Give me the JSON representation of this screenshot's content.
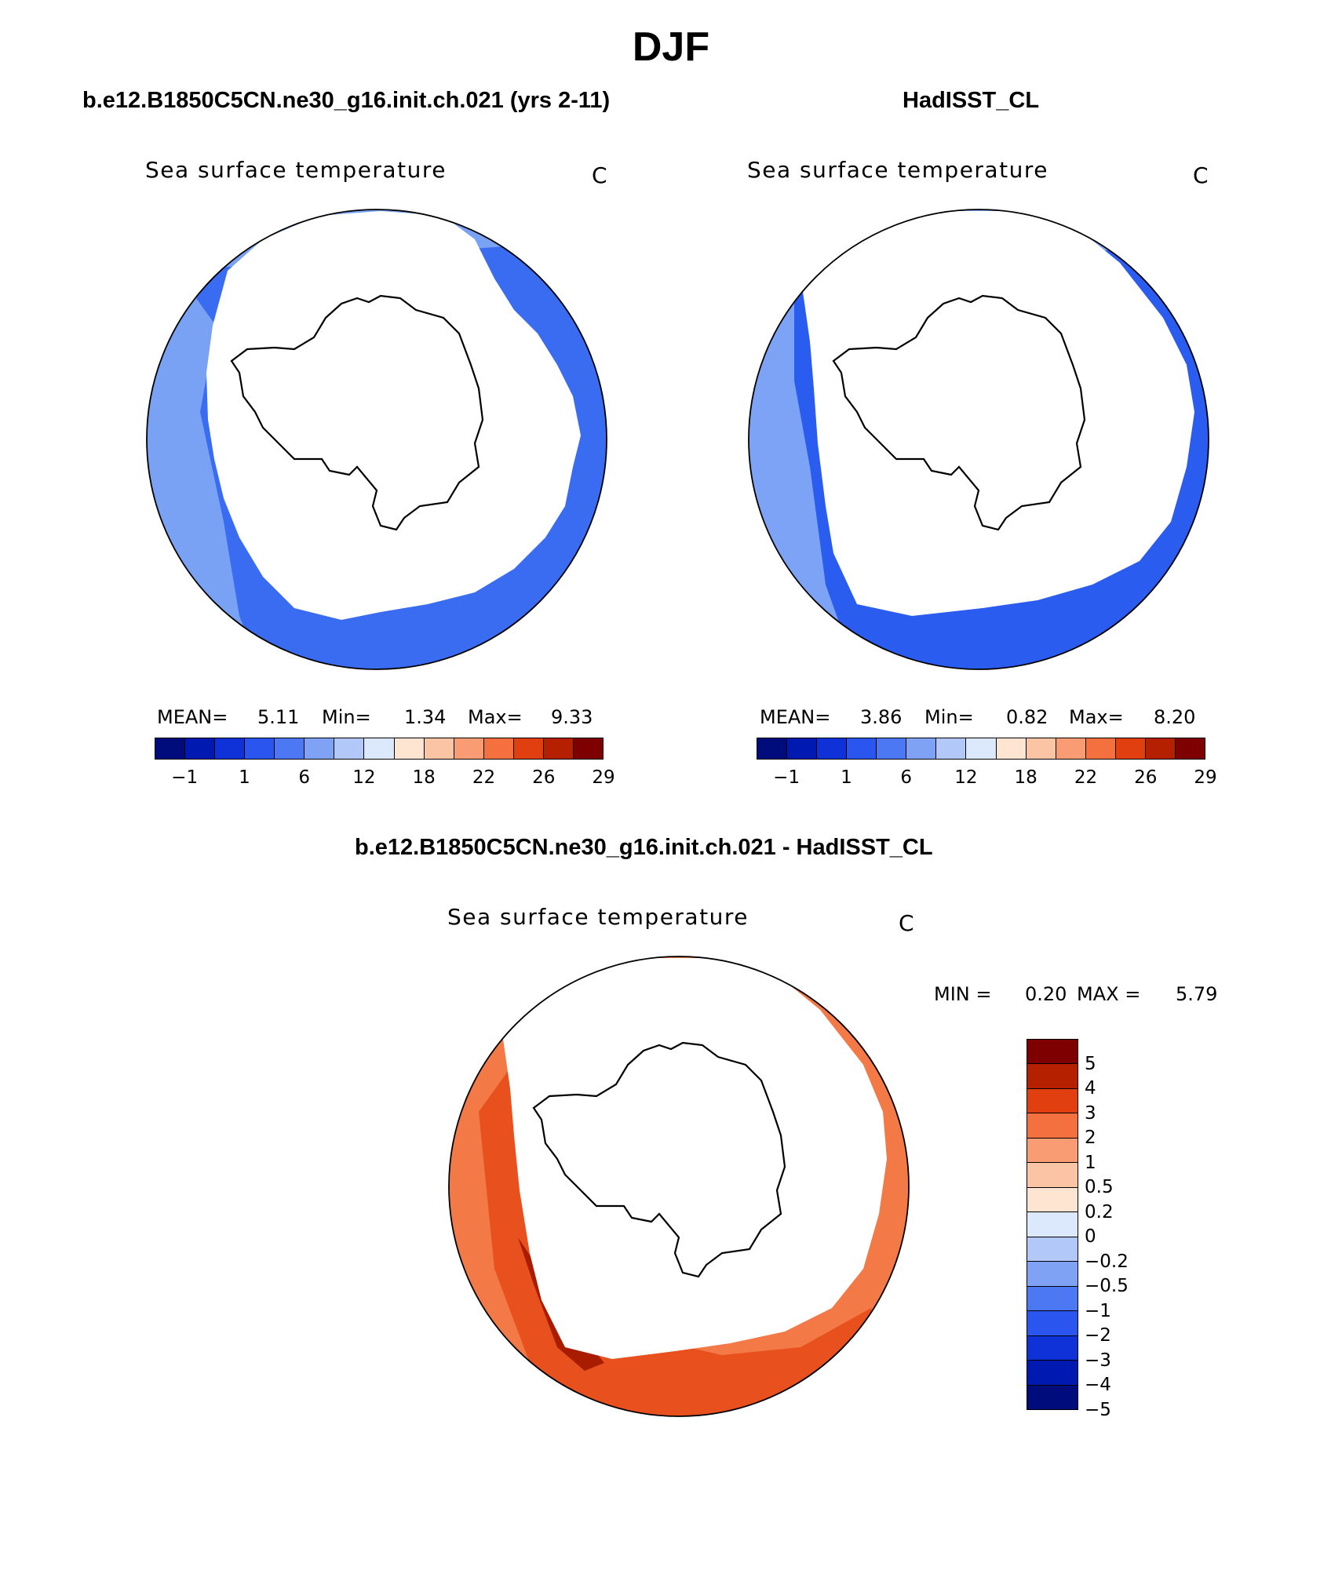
{
  "title": "DJF",
  "panels": {
    "model": {
      "header": "b.e12.B1850C5CN.ne30_g16.init.ch.021 (yrs 2-11)",
      "variable": "Sea surface temperature",
      "units": "C",
      "mean_label": "MEAN=",
      "mean": "5.11",
      "min_label": "Min=",
      "min": "1.34",
      "max_label": "Max=",
      "max": "9.33",
      "ticks": [
        "−1",
        "1",
        "6",
        "12",
        "18",
        "22",
        "26",
        "29"
      ]
    },
    "obs": {
      "header": "HadISST_CL",
      "variable": "Sea surface temperature",
      "units": "C",
      "mean_label": "MEAN=",
      "mean": "3.86",
      "min_label": "Min=",
      "min": "0.82",
      "max_label": "Max=",
      "max": "8.20",
      "ticks": [
        "−1",
        "1",
        "6",
        "12",
        "18",
        "22",
        "26",
        "29"
      ]
    },
    "diff": {
      "header": "b.e12.B1850C5CN.ne30_g16.init.ch.021 - HadISST_CL",
      "variable": "Sea surface temperature",
      "units": "C",
      "min_label": "MIN =",
      "min": "0.20",
      "max_label": "MAX =",
      "max": "5.79",
      "ticks": [
        "5",
        "4",
        "3",
        "2",
        "1",
        "0.5",
        "0.2",
        "0",
        "−0.2",
        "−0.5",
        "−1",
        "−2",
        "−3",
        "−4",
        "−5"
      ]
    }
  },
  "palette": [
    "#000b7c",
    "#0019b0",
    "#0f32d8",
    "#2a55ee",
    "#4c78f4",
    "#7fa2f5",
    "#b2c8f9",
    "#dce8fb",
    "#fde5d2",
    "#fbc4a5",
    "#f99c74",
    "#f5703f",
    "#e23f10",
    "#b52000",
    "#7e0000"
  ],
  "map_colors": {
    "model_inner": "#3a6cf2",
    "model_outer": "#79a1f4",
    "obs_inner": "#2a5cf0",
    "obs_outer": "#7ca3f5",
    "diff_base": "#f37a46",
    "diff_strong": "#e8501d",
    "diff_max": "#a81c00",
    "land": "#ffffff"
  }
}
